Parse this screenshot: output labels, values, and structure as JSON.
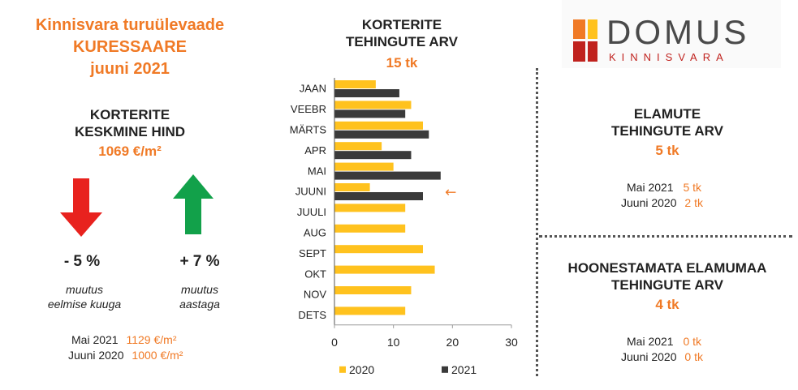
{
  "header": {
    "title_line1": "Kinnisvara turuülevaade",
    "title_line2": "KURESSAARE",
    "title_line3": "juuni 2021"
  },
  "apartment_price": {
    "heading_line1": "KORTERITE",
    "heading_line2": "KESKMINE HIND",
    "value": "1069 €/m²",
    "monthly_change": "- 5 %",
    "monthly_note_line1": "muutus",
    "monthly_note_line2": "eelmise kuuga",
    "yearly_change": "+ 7 %",
    "yearly_note_line1": "muutus",
    "yearly_note_line2": "aastaga",
    "comparisons": [
      {
        "label": "Mai 2021",
        "value": "1129 €/m²"
      },
      {
        "label": "Juuni 2020",
        "value": "1000 €/m²"
      }
    ]
  },
  "house_transactions": {
    "title_line1": "ELAMUTE",
    "title_line2": "TEHINGUTE ARV",
    "value": "5 tk",
    "comparisons": [
      {
        "label": "Mai 2021",
        "value": "5 tk"
      },
      {
        "label": "Juuni 2020",
        "value": "2 tk"
      }
    ]
  },
  "land_transactions": {
    "title_line1": "HOONESTAMATA ELAMUMAA",
    "title_line2": "TEHINGUTE ARV",
    "value": "4 tk",
    "comparisons": [
      {
        "label": "Mai 2021",
        "value": "0 tk"
      },
      {
        "label": "Juuni 2020",
        "value": "0 tk"
      }
    ]
  },
  "logo": {
    "name": "DOMUS",
    "subtitle": "KINNISVARA"
  },
  "colors": {
    "accent": "#f07a26",
    "down_arrow": "#e8221e",
    "up_arrow": "#12a14a",
    "series_2020": "#ffc21e",
    "series_2021": "#3a3a3a",
    "logo_orange": "#f07a26",
    "logo_yellow": "#ffc21e",
    "logo_red": "#c0221e"
  },
  "chart_data": {
    "type": "bar",
    "orientation": "horizontal",
    "title_line1": "KORTERITE",
    "title_line2": "TEHINGUTE ARV",
    "total": "15 tk",
    "categories": [
      "JAAN",
      "VEEBR",
      "MÄRTS",
      "APR",
      "MAI",
      "JUUNI",
      "JUULI",
      "AUG",
      "SEPT",
      "OKT",
      "NOV",
      "DETS"
    ],
    "series": [
      {
        "name": "2020",
        "values": [
          7,
          13,
          15,
          8,
          10,
          6,
          12,
          12,
          15,
          17,
          13,
          12
        ]
      },
      {
        "name": "2021",
        "values": [
          11,
          12,
          16,
          13,
          18,
          15,
          null,
          null,
          null,
          null,
          null,
          null
        ]
      }
    ],
    "xlim": [
      0,
      30
    ],
    "xticks": [
      "0",
      "10",
      "20",
      "30"
    ],
    "grid": false,
    "legend": "bottom",
    "highlight_category": "JUUNI",
    "highlight_marker": "←"
  }
}
